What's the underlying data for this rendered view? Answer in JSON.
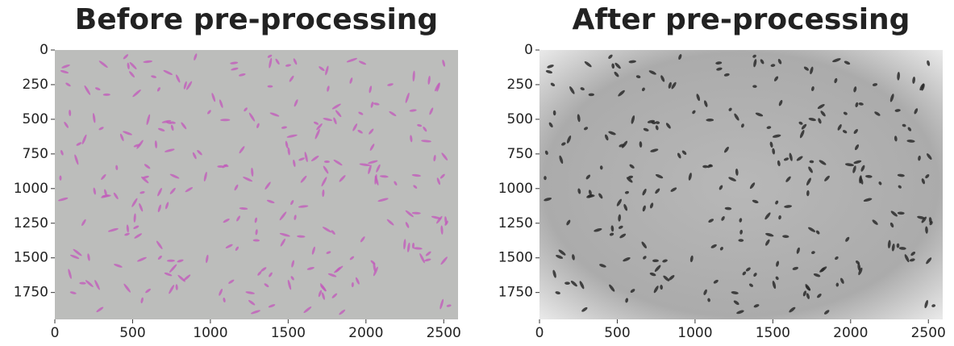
{
  "chart_data": [
    {
      "type": "image",
      "title": "Before pre-processing",
      "xlim": [
        0,
        2592
      ],
      "ylim": [
        1944,
        0
      ],
      "xticks": [
        0,
        500,
        1000,
        1500,
        2000,
        2500
      ],
      "yticks": [
        0,
        250,
        500,
        750,
        1000,
        1250,
        1500,
        1750
      ]
    },
    {
      "type": "image",
      "title": "After pre-processing",
      "xlim": [
        0,
        2592
      ],
      "ylim": [
        1944,
        0
      ],
      "xticks": [
        0,
        500,
        1000,
        1500,
        2000,
        2500
      ],
      "yticks": [
        0,
        250,
        500,
        750,
        1000,
        1250,
        1500,
        1750
      ]
    }
  ]
}
